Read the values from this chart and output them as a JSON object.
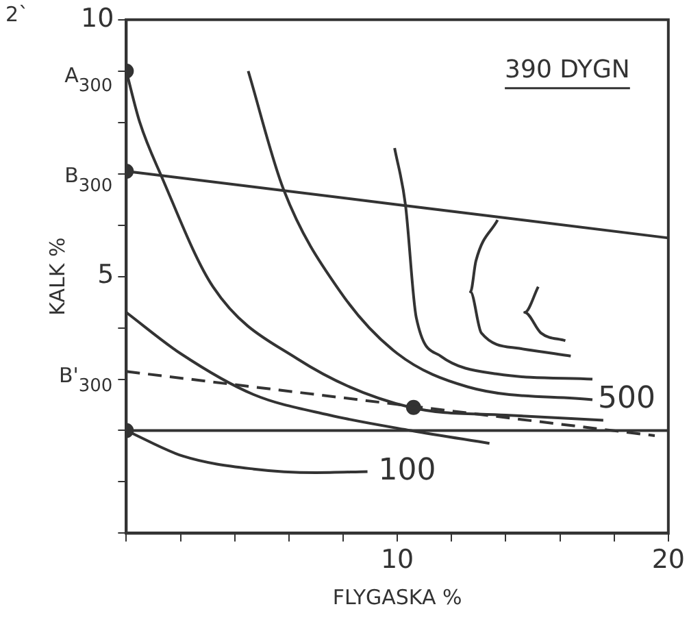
{
  "chart_data": {
    "type": "line",
    "title": "390 DYGN",
    "xlabel": "FLYGASKA %",
    "ylabel": "KALK %",
    "xlim": [
      0,
      20
    ],
    "ylim": [
      0,
      10
    ],
    "xticks": [
      {
        "value": 0,
        "label": null
      },
      {
        "value": 2,
        "label": null
      },
      {
        "value": 4,
        "label": null
      },
      {
        "value": 6,
        "label": null
      },
      {
        "value": 8,
        "label": null
      },
      10,
      {
        "value": 12,
        "label": null
      },
      {
        "value": 14,
        "label": null
      },
      {
        "value": 16,
        "label": null
      },
      {
        "value": 18,
        "label": null
      },
      20
    ],
    "yticks": [
      {
        "value": 0,
        "label": null
      },
      {
        "value": 1,
        "label": null
      },
      {
        "value": 2,
        "label": null
      },
      {
        "value": 3,
        "label": null
      },
      {
        "value": 4,
        "label": null
      },
      5,
      {
        "value": 6,
        "label": null
      },
      {
        "value": 7,
        "label": null
      },
      {
        "value": 8,
        "label": null
      },
      {
        "value": 9,
        "label": null
      },
      10
    ],
    "grid": false,
    "legend": false,
    "marker": "none",
    "line_style": "solid",
    "series": [
      {
        "color": "#333333",
        "x": [
          0,
          2.1,
          4.7,
          7,
          8.9
        ],
        "values": [
          2,
          1.5,
          1.25,
          1.18,
          1.2
        ]
      },
      {
        "color": "#333333",
        "x": [
          0,
          2,
          4.7,
          7.5,
          10.5,
          13.4
        ],
        "values": [
          4.3,
          3.5,
          2.7,
          2.3,
          2,
          1.75
        ]
      },
      {
        "color": "#333333",
        "x": [
          0,
          0.5,
          1.3,
          3.2,
          6.3,
          10.5,
          14,
          17.6
        ],
        "values": [
          9,
          8,
          6.95,
          4.8,
          3.4,
          2.45,
          2.3,
          2.2
        ]
      },
      {
        "color": "#333333",
        "x": [
          4.5,
          5.8,
          7.9,
          10,
          12.6,
          17.2
        ],
        "values": [
          9,
          6.7,
          4.7,
          3.5,
          2.85,
          2.6
        ]
      },
      {
        "color": "#333333",
        "x": [
          9.9,
          10.3,
          10.7,
          11.6,
          13.7,
          17.2
        ],
        "values": [
          7.5,
          6.4,
          4.2,
          3.45,
          3.1,
          3
        ]
      },
      {
        "color": "#333333",
        "x": [
          13.7,
          12.9,
          12.7,
          13.1,
          14.5,
          16.4
        ],
        "values": [
          6.1,
          5.3,
          4.7,
          3.9,
          3.6,
          3.45
        ]
      },
      {
        "color": "#333333",
        "x": [
          15.2,
          14.7,
          15.3,
          16.2
        ],
        "values": [
          4.8,
          4.3,
          3.9,
          3.75
        ]
      },
      {
        "color": "#333333",
        "x": [
          0,
          20
        ],
        "values": [
          7.05,
          5.75
        ]
      },
      {
        "color": "#333333",
        "line_style": "dashed",
        "x": [
          0,
          19.5
        ],
        "values": [
          3.15,
          1.9
        ]
      },
      {
        "type": "scatter",
        "marker": "circle",
        "color": "#333333",
        "x": [
          0,
          0,
          0,
          10.6
        ],
        "values": [
          9,
          7.05,
          2,
          2.45
        ]
      }
    ],
    "ref_lines": [
      {
        "axis": "y",
        "value": 2,
        "color": "#333333"
      }
    ],
    "annotations": [
      "2`",
      {
        "text": "A$_{300}$",
        "x": 0,
        "y": 9
      },
      {
        "text": "B$_{300}$",
        "x": 0,
        "y": 7.05
      },
      {
        "text": "B'$_{300}$",
        "x": 0,
        "y": 3.15
      },
      {
        "text": "500",
        "x": 17.2,
        "y": 2.6
      },
      {
        "text": "100",
        "x": 9.1,
        "y": 1.2
      }
    ]
  }
}
